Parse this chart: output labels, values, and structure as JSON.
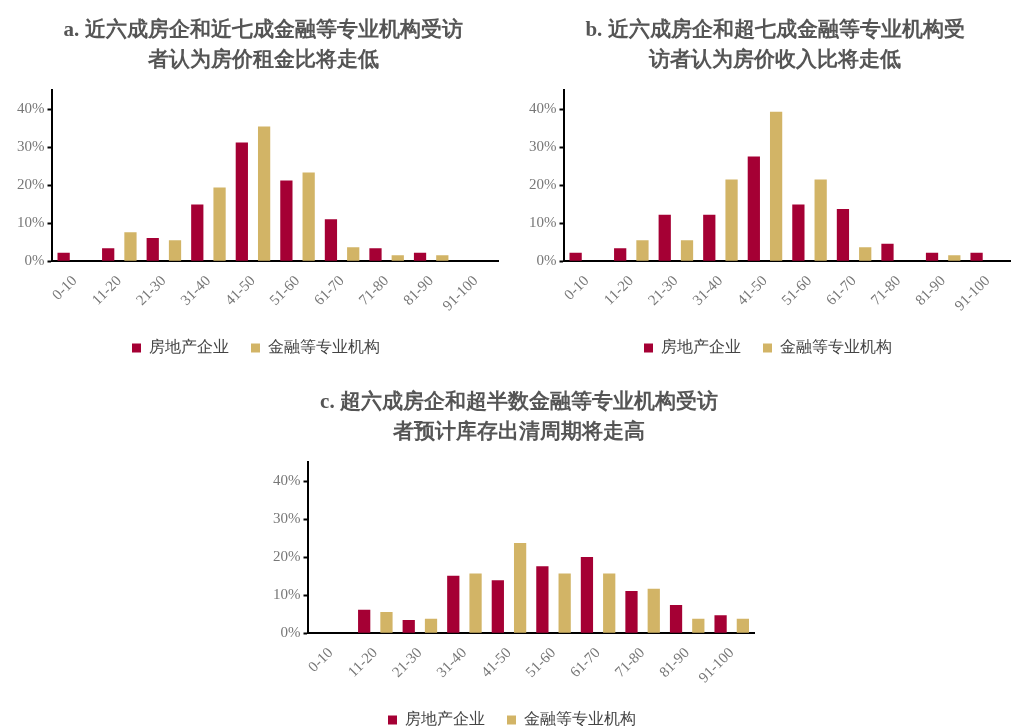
{
  "chart_data": [
    {
      "type": "bar",
      "title": "a. 近六成房企和近七成金融等专业机构受访者认为房价租金比将走低",
      "categories": [
        "0-10",
        "11-20",
        "21-30",
        "31-40",
        "41-50",
        "51-60",
        "61-70",
        "71-80",
        "81-90",
        "91-100"
      ],
      "series": [
        {
          "name": "房地产企业",
          "color": "#a50034",
          "values": [
            2.2,
            3.4,
            6.1,
            14.9,
            31.2,
            21.2,
            11.0,
            3.4,
            2.2,
            0
          ]
        },
        {
          "name": "金融等专业机构",
          "color": "#d2b466",
          "values": [
            0,
            7.6,
            5.5,
            19.4,
            35.4,
            23.3,
            3.7,
            1.6,
            1.6,
            0
          ]
        }
      ],
      "ylim": [
        0,
        45
      ],
      "yticks": [
        {
          "value": 0,
          "label": "0%"
        },
        {
          "value": 10,
          "label": "10%"
        },
        {
          "value": 20,
          "label": "20%"
        },
        {
          "value": 30,
          "label": "30%"
        },
        {
          "value": 40,
          "label": "40%"
        }
      ],
      "legend": "bottom"
    },
    {
      "type": "bar",
      "title": "b. 近六成房企和超七成金融等专业机构受访者认为房价收入比将走低",
      "categories": [
        "0-10",
        "11-20",
        "21-30",
        "31-40",
        "41-50",
        "51-60",
        "61-70",
        "71-80",
        "81-90",
        "91-100"
      ],
      "series": [
        {
          "name": "房地产企业",
          "color": "#a50034",
          "values": [
            2.2,
            3.4,
            12.2,
            12.2,
            27.5,
            14.9,
            13.7,
            4.6,
            2.2,
            2.2
          ]
        },
        {
          "name": "金融等专业机构",
          "color": "#d2b466",
          "values": [
            0,
            5.5,
            5.5,
            21.5,
            39.3,
            21.5,
            3.7,
            0,
            1.6,
            0
          ]
        }
      ],
      "ylim": [
        0,
        45
      ],
      "yticks": [
        {
          "value": 0,
          "label": "0%"
        },
        {
          "value": 10,
          "label": "10%"
        },
        {
          "value": 20,
          "label": "20%"
        },
        {
          "value": 30,
          "label": "30%"
        },
        {
          "value": 40,
          "label": "40%"
        }
      ],
      "legend": "bottom"
    },
    {
      "type": "bar",
      "title": "c. 超六成房企和超半数金融等专业机构受访者预计库存出清周期将走高",
      "categories": [
        "0-10",
        "11-20",
        "21-30",
        "31-40",
        "41-50",
        "51-60",
        "61-70",
        "71-80",
        "81-90",
        "91-100"
      ],
      "series": [
        {
          "name": "房地产企业",
          "color": "#a50034",
          "values": [
            0,
            6.2,
            3.5,
            15.1,
            13.9,
            17.6,
            20.0,
            11.1,
            7.4,
            4.7
          ]
        },
        {
          "name": "金融等专业机构",
          "color": "#d2b466",
          "values": [
            0,
            5.6,
            3.8,
            15.7,
            23.7,
            15.7,
            15.7,
            11.7,
            3.8,
            3.8
          ]
        }
      ],
      "ylim": [
        0,
        45
      ],
      "yticks": [
        {
          "value": 0,
          "label": "0%"
        },
        {
          "value": 10,
          "label": "10%"
        },
        {
          "value": 20,
          "label": "20%"
        },
        {
          "value": 30,
          "label": "30%"
        },
        {
          "value": 40,
          "label": "40%"
        }
      ],
      "legend": "bottom"
    }
  ]
}
